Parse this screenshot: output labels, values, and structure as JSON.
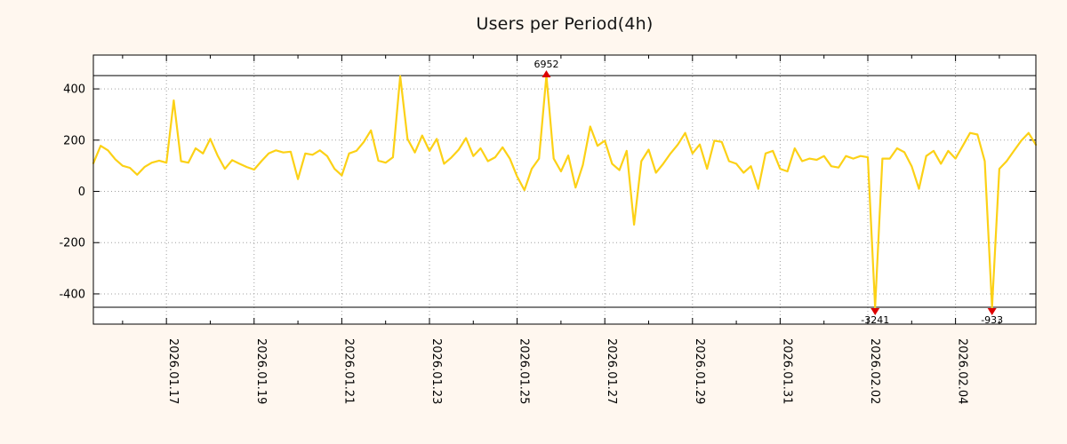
{
  "chart_data": {
    "type": "line",
    "title": "Users per Period(4h)",
    "grid": true,
    "legend_position": "none",
    "y_ticks": [
      400,
      200,
      0,
      -200,
      -400
    ],
    "ylim": [
      -518,
      532
    ],
    "clip_value": 452,
    "x_ticks": [
      {
        "label": "2026.01.17",
        "index": 10
      },
      {
        "label": "2026.01.19",
        "index": 22
      },
      {
        "label": "2026.01.21",
        "index": 34
      },
      {
        "label": "2026.01.23",
        "index": 46
      },
      {
        "label": "2026.01.25",
        "index": 58
      },
      {
        "label": "2026.01.27",
        "index": 70
      },
      {
        "label": "2026.01.29",
        "index": 82
      },
      {
        "label": "2026.01.31",
        "index": 94
      },
      {
        "label": "2026.02.02",
        "index": 106
      },
      {
        "label": "2026.02.04",
        "index": 118
      }
    ],
    "values": [
      110,
      178,
      160,
      125,
      100,
      92,
      65,
      95,
      112,
      120,
      112,
      355,
      118,
      112,
      168,
      148,
      205,
      140,
      88,
      122,
      108,
      95,
      85,
      118,
      148,
      160,
      152,
      155,
      48,
      148,
      143,
      160,
      138,
      88,
      62,
      148,
      158,
      192,
      238,
      120,
      112,
      133,
      450,
      205,
      152,
      218,
      158,
      205,
      108,
      132,
      163,
      208,
      138,
      168,
      118,
      133,
      172,
      128,
      58,
      5,
      88,
      128,
      6952,
      128,
      78,
      140,
      15,
      103,
      253,
      178,
      198,
      108,
      83,
      158,
      -130,
      118,
      163,
      73,
      108,
      148,
      183,
      228,
      148,
      183,
      88,
      198,
      193,
      118,
      108,
      73,
      98,
      10,
      148,
      158,
      88,
      78,
      168,
      118,
      128,
      123,
      138,
      98,
      93,
      138,
      128,
      138,
      133,
      -3241,
      128,
      128,
      168,
      153,
      98,
      10,
      138,
      158,
      108,
      158,
      128,
      178,
      228,
      222,
      118,
      -933,
      88,
      118,
      158,
      198,
      228,
      182
    ],
    "annotations": [
      {
        "label": "6952",
        "value": 6952,
        "index": 62,
        "direction": "up"
      },
      {
        "label": "-3241",
        "value": -3241,
        "index": 107,
        "direction": "down"
      },
      {
        "label": "-933",
        "value": -933,
        "index": 123,
        "direction": "down"
      }
    ],
    "colors": {
      "line": "#FCD116",
      "annotation_text": "#D4A017",
      "marker": "#DD0000",
      "background": "#FFF7EF",
      "plot_background": "#FFFFFF",
      "grid": "#A0A0A0",
      "border": "#000000"
    }
  }
}
